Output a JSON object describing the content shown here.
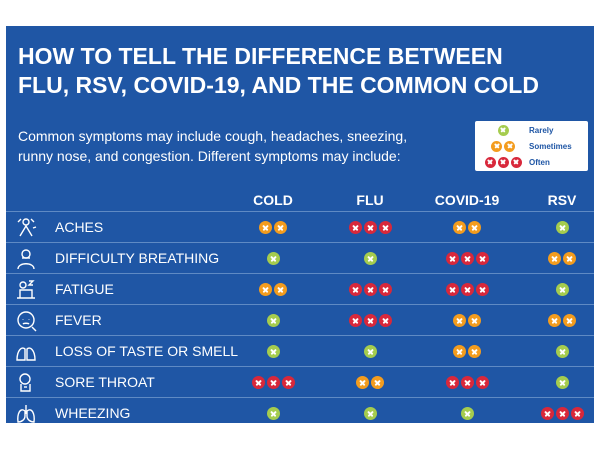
{
  "title_line1": "HOW TO TELL THE DIFFERENCE BETWEEN",
  "title_line2": "FLU, RSV, COVID-19, AND THE COMMON COLD",
  "intro_line1": "Common symptoms may include cough, headaches, sneezing,",
  "intro_line2": "runny nose, and congestion. Different symptoms may include:",
  "legend": [
    {
      "label": "Rarely",
      "count": 1,
      "color": "#a5cc4e"
    },
    {
      "label": "Sometimes",
      "count": 2,
      "color": "#f39c1e"
    },
    {
      "label": "Often",
      "count": 3,
      "color": "#d8283b"
    }
  ],
  "columns": [
    "COLD",
    "FLU",
    "COVID-19",
    "RSV"
  ],
  "symptoms": [
    {
      "name": "ACHES",
      "icon": "aches-icon",
      "levels": [
        2,
        3,
        2,
        1
      ]
    },
    {
      "name": "DIFFICULTY BREATHING",
      "icon": "breathing-icon",
      "levels": [
        1,
        1,
        3,
        2
      ]
    },
    {
      "name": "FATIGUE",
      "icon": "fatigue-icon",
      "levels": [
        2,
        3,
        3,
        1
      ]
    },
    {
      "name": "FEVER",
      "icon": "fever-icon",
      "levels": [
        1,
        3,
        2,
        2
      ]
    },
    {
      "name": "LOSS OF TASTE OR SMELL",
      "icon": "taste-smell-icon",
      "levels": [
        1,
        1,
        2,
        1
      ]
    },
    {
      "name": "SORE THROAT",
      "icon": "sore-throat-icon",
      "levels": [
        3,
        2,
        3,
        1
      ]
    },
    {
      "name": "WHEEZING",
      "icon": "lungs-icon",
      "levels": [
        1,
        1,
        1,
        3
      ]
    }
  ],
  "colors": {
    "background": "#1f56a5",
    "rarely": "#a5cc4e",
    "sometimes": "#f39c1e",
    "often": "#d8283b"
  }
}
